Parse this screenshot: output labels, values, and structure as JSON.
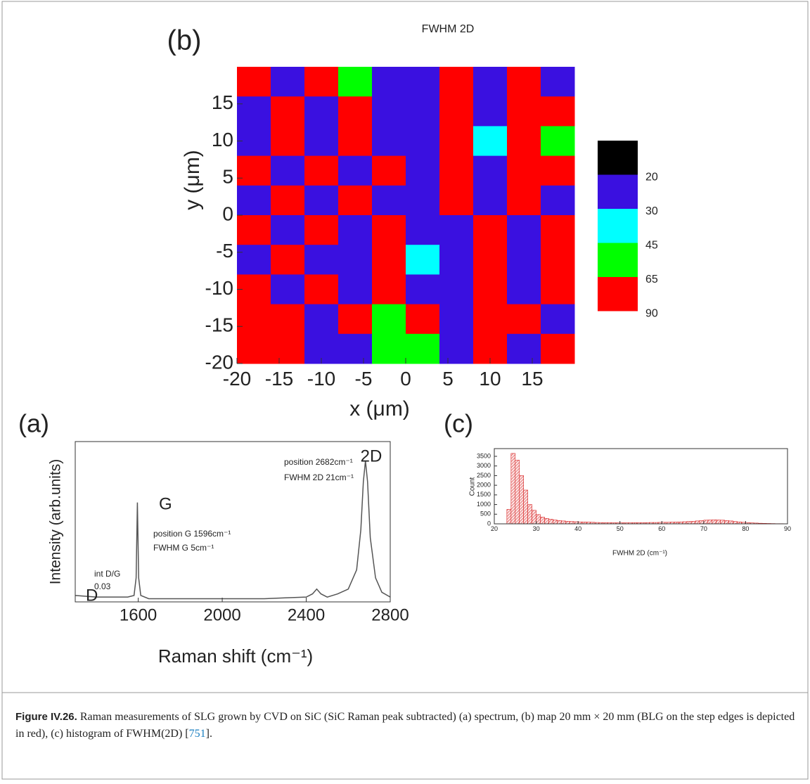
{
  "chart_data": [
    {
      "type": "heatmap",
      "panel": "(b)",
      "title": "FWHM 2D",
      "xlabel": "x (μm)",
      "ylabel": "y (μm)",
      "xlim": [
        -20,
        20
      ],
      "xticks": [
        -20,
        -15,
        -10,
        -5,
        0,
        5,
        10,
        15
      ],
      "ylim": [
        -20,
        20
      ],
      "yticks": [
        -20,
        -15,
        -10,
        -5,
        0,
        5,
        10,
        15
      ],
      "z": [
        [
          70,
          25,
          70,
          55,
          25,
          25,
          70,
          25,
          70,
          25
        ],
        [
          25,
          70,
          25,
          70,
          25,
          25,
          70,
          25,
          70,
          70
        ],
        [
          25,
          70,
          25,
          70,
          25,
          25,
          70,
          35,
          70,
          55
        ],
        [
          70,
          25,
          70,
          25,
          70,
          25,
          70,
          25,
          70,
          70
        ],
        [
          25,
          70,
          25,
          70,
          25,
          25,
          70,
          25,
          70,
          25
        ],
        [
          70,
          25,
          70,
          25,
          70,
          25,
          25,
          70,
          25,
          70
        ],
        [
          25,
          70,
          25,
          25,
          70,
          35,
          25,
          70,
          25,
          70
        ],
        [
          70,
          25,
          70,
          25,
          70,
          25,
          25,
          70,
          25,
          70
        ],
        [
          70,
          70,
          25,
          70,
          55,
          70,
          25,
          70,
          70,
          25
        ],
        [
          70,
          70,
          25,
          25,
          55,
          55,
          25,
          70,
          25,
          70
        ]
      ],
      "levels": [
        20,
        30,
        45,
        65,
        90
      ],
      "colors": [
        "#000000",
        "#3a10e0",
        "#00ffff",
        "#00ff00",
        "#ff0000"
      ]
    },
    {
      "type": "line",
      "panel": "(a)",
      "xlabel": "Raman shift (cm⁻¹)",
      "ylabel": "Intensity (arb.units)",
      "xlim": [
        1300,
        2800
      ],
      "xticks": [
        1600,
        2000,
        2400,
        2800
      ],
      "ylim": [
        0,
        1
      ],
      "color": "#555555",
      "x": [
        1300,
        1350,
        1400,
        1450,
        1500,
        1550,
        1580,
        1590,
        1596,
        1602,
        1612,
        1650,
        1700,
        1800,
        1900,
        2000,
        2100,
        2200,
        2300,
        2400,
        2430,
        2450,
        2470,
        2500,
        2550,
        2600,
        2640,
        2660,
        2672,
        2682,
        2692,
        2705,
        2730,
        2760,
        2800
      ],
      "values": [
        0.04,
        0.035,
        0.03,
        0.03,
        0.03,
        0.03,
        0.04,
        0.15,
        0.62,
        0.15,
        0.04,
        0.02,
        0.02,
        0.02,
        0.02,
        0.02,
        0.02,
        0.02,
        0.025,
        0.03,
        0.05,
        0.08,
        0.05,
        0.03,
        0.05,
        0.08,
        0.2,
        0.45,
        0.75,
        0.88,
        0.75,
        0.4,
        0.15,
        0.06,
        0.03
      ],
      "annotations": [
        "2D",
        "position 2682cm⁻¹",
        "FWHM 2D 21cm⁻¹",
        "G",
        "position G 1596cm⁻¹",
        "FWHM G 5cm⁻¹",
        "int D/G",
        "0.03",
        "D"
      ]
    },
    {
      "type": "histogram",
      "panel": "(c)",
      "xlabel": "FWHM 2D (cm⁻¹)",
      "ylabel": "Count",
      "xlim": [
        20,
        90
      ],
      "xticks": [
        20,
        30,
        40,
        50,
        60,
        70,
        80,
        90
      ],
      "ylim": [
        0,
        3900
      ],
      "yticks": [
        0,
        500,
        1000,
        1500,
        2000,
        2500,
        3000,
        3500
      ],
      "color": "#d62020",
      "bins": [
        23,
        24,
        25,
        26,
        27,
        28,
        29,
        30,
        31,
        32,
        33,
        34,
        35,
        36,
        37,
        38,
        39,
        40,
        41,
        42,
        43,
        44,
        45,
        46,
        47,
        48,
        49,
        50,
        51,
        52,
        53,
        54,
        55,
        56,
        57,
        58,
        59,
        60,
        61,
        62,
        63,
        64,
        65,
        66,
        67,
        68,
        69,
        70,
        71,
        72,
        73,
        74,
        75,
        76,
        77,
        78,
        79,
        80,
        81,
        82,
        83,
        84,
        85,
        86,
        87,
        88,
        89
      ],
      "values": [
        750,
        3650,
        3300,
        2500,
        1750,
        1000,
        700,
        480,
        350,
        280,
        240,
        200,
        170,
        150,
        130,
        120,
        110,
        100,
        95,
        90,
        80,
        70,
        65,
        60,
        60,
        55,
        55,
        55,
        55,
        55,
        60,
        60,
        60,
        65,
        70,
        70,
        75,
        80,
        80,
        90,
        95,
        100,
        110,
        120,
        130,
        150,
        170,
        190,
        200,
        210,
        200,
        190,
        170,
        150,
        120,
        100,
        80,
        65,
        50,
        40,
        30,
        25,
        20,
        15,
        10,
        10
      ]
    }
  ],
  "caption": {
    "label": "Figure IV.26.",
    "text": "Raman measurements of SLG grown by CVD on SiC (SiC Raman peak subtracted) (a) spectrum, (b) map 20 mm × 20 mm (BLG on the step edges is depicted in red), (c) histogram of FWHM(2D) [",
    "ref": "751",
    "end": "]."
  }
}
